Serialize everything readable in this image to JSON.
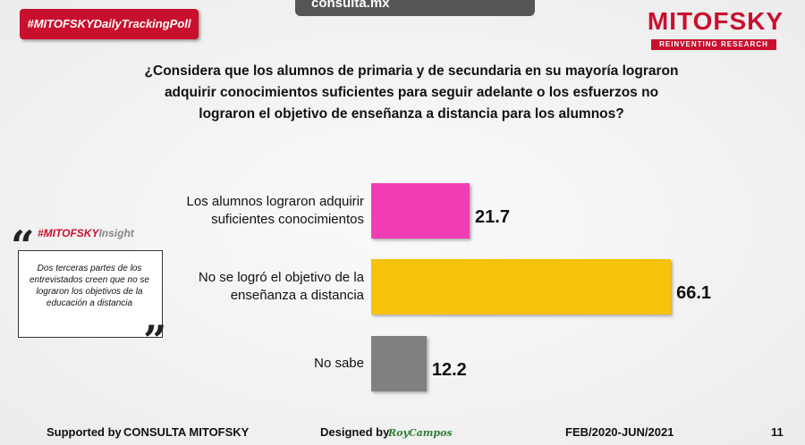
{
  "header": {
    "hashtag": "#MITOFSKYDailyTrackingPoll",
    "site": "consulta.mx",
    "brand": "MITOFSKY",
    "brand_tagline": "REINVENTING RESEARCH"
  },
  "chart_data": {
    "type": "bar",
    "orientation": "horizontal",
    "title": "¿Considera que los alumnos de primaria y de secundaria en su mayoría lograron adquirir conocimientos suficientes para seguir adelante o los esfuerzos no lograron el objetivo de enseñanza a distancia para los alumnos?",
    "categories": [
      "Los alumnos lograron adquirir suficientes conocimientos",
      "No se logró el objetivo de la enseñanza a distancia",
      "No sabe"
    ],
    "values": [
      21.7,
      66.1,
      12.2
    ],
    "colors": [
      "#f13db4",
      "#f6c20b",
      "#808080"
    ]
  },
  "insight": {
    "tag_red": "#MITOFSKY",
    "tag_gray": "Insight",
    "open_quote": "“",
    "close_quote": "”",
    "text": "Dos terceras partes de los entrevistados creen que no se lograron los objetivos de la educación a distancia"
  },
  "footer": {
    "supported_label": "Supported by",
    "supported_by": "CONSULTA MITOFSKY",
    "designed_label": "Designed by",
    "designer": "RoyCampos",
    "period": "FEB/2020-JUN/2021",
    "page": "11"
  }
}
